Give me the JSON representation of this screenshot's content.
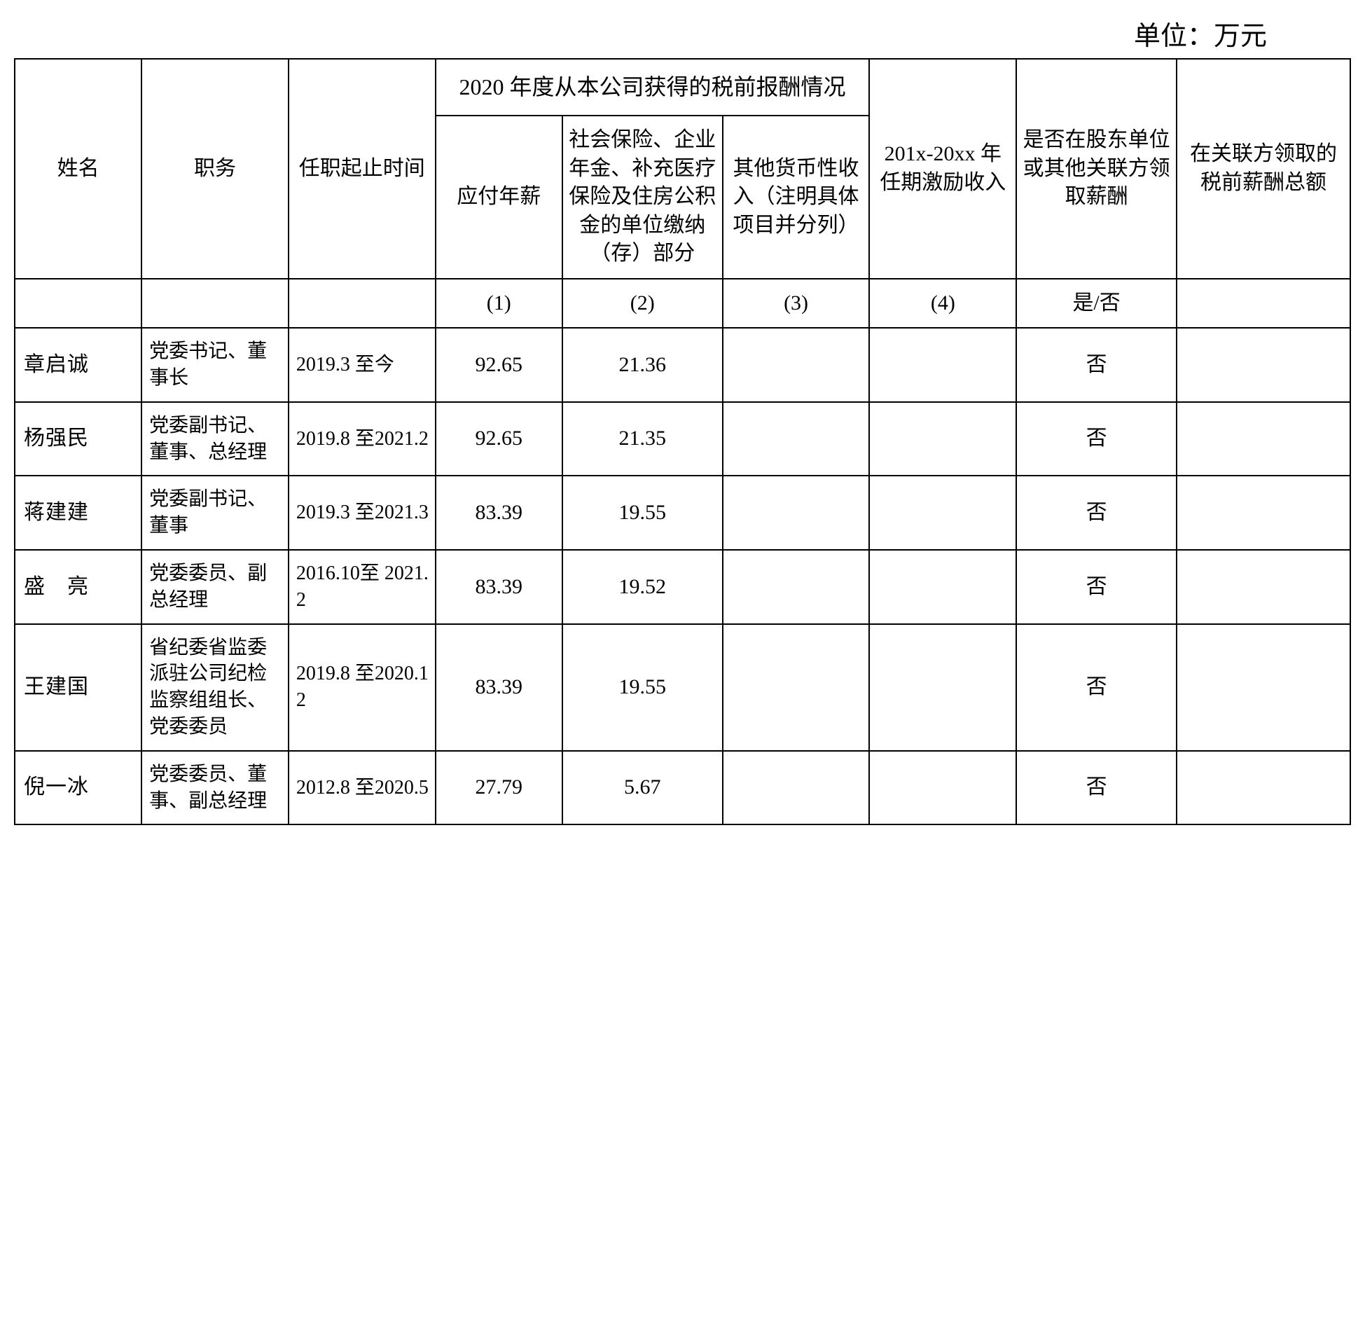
{
  "unit_label": "单位：万元",
  "headers": {
    "name": "姓名",
    "position": "职务",
    "tenure": "任职起止时间",
    "compensation_group": "2020 年度从本公司获得的税前报酬情况",
    "salary": "应付年薪",
    "insurance": "社会保险、企业年金、补充医疗保险及住房公积金的单位缴纳（存）部分",
    "other_income": "其他货币性收入（注明具体项目并分列）",
    "incentive": "201x-20xx 年任期激励收入",
    "related_party": "是否在股东单位或其他关联方领取薪酬",
    "related_total": "在关联方领取的税前薪酬总额"
  },
  "subheaders": {
    "col1": "(1)",
    "col2": "(2)",
    "col3": "(3)",
    "col4": "(4)",
    "col5": "是/否"
  },
  "rows": [
    {
      "name": "章启诚",
      "position": "党委书记、董事长",
      "tenure": "2019.3 至今",
      "salary": "92.65",
      "insurance": "21.36",
      "other": "",
      "incentive": "",
      "related": "否",
      "total": "",
      "spaced": false
    },
    {
      "name": "杨强民",
      "position": "党委副书记、董事、总经理",
      "tenure": "2019.8 至2021.2",
      "salary": "92.65",
      "insurance": "21.35",
      "other": "",
      "incentive": "",
      "related": "否",
      "total": "",
      "spaced": false
    },
    {
      "name": "蒋建建",
      "position": "党委副书记、董事",
      "tenure": "2019.3 至2021.3",
      "salary": "83.39",
      "insurance": "19.55",
      "other": "",
      "incentive": "",
      "related": "否",
      "total": "",
      "spaced": false
    },
    {
      "name": "盛　亮",
      "position": "党委委员、副总经理",
      "tenure": "2016.10至 2021.2",
      "salary": "83.39",
      "insurance": "19.52",
      "other": "",
      "incentive": "",
      "related": "否",
      "total": "",
      "spaced": false
    },
    {
      "name": "王建国",
      "position": "省纪委省监委派驻公司纪检监察组组长、党委委员",
      "tenure": "2019.8 至2020.12",
      "salary": "83.39",
      "insurance": "19.55",
      "other": "",
      "incentive": "",
      "related": "否",
      "total": "",
      "spaced": false
    },
    {
      "name": "倪一冰",
      "position": "党委委员、董事、副总经理",
      "tenure": "2012.8 至2020.5",
      "salary": "27.79",
      "insurance": "5.67",
      "other": "",
      "incentive": "",
      "related": "否",
      "total": "",
      "spaced": false
    }
  ]
}
